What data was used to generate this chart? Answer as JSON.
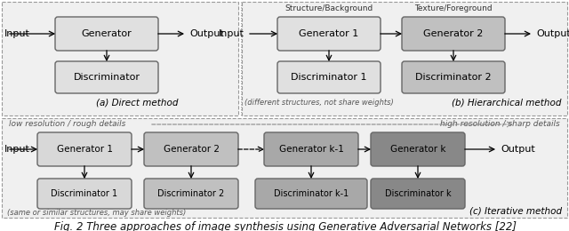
{
  "title": "Fig. 2 Three approaches of image synthesis using Generative Adversarial Networks [22]",
  "title_fontsize": 8.5,
  "box_light": "#e0e0e0",
  "box_medium": "#c0c0c0",
  "box_dark3": "#a0a0a0",
  "box_dark4": "#808080",
  "box_edge": "#666666",
  "panel_bg": "#f0f0f0",
  "panel_edge": "#999999",
  "text_color": "#111111",
  "section_a_label": "(a) Direct method",
  "section_b_label": "(b) Hierarchical method",
  "section_c_label": "(c) Iterative method",
  "note_a": "(different structures, not share weights)",
  "note_b": "(same or similar structures, may share weights)",
  "note_low": "low resolution / rough details",
  "note_high": "high resolution / sharp details",
  "label_structure": "Structure/Background",
  "label_texture": "Texture/Foreground"
}
